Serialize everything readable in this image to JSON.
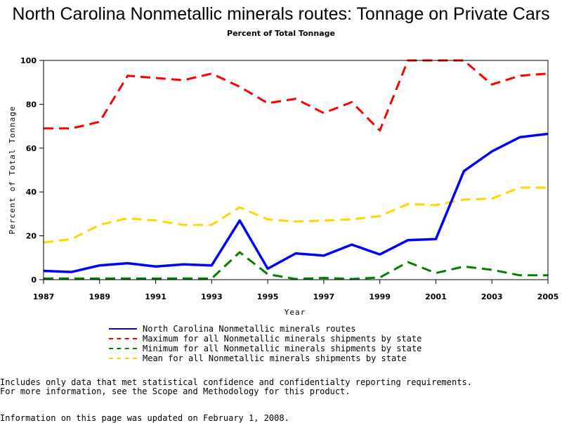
{
  "chart_data": {
    "type": "line",
    "title": "North Carolina Nonmetallic minerals routes: Tonnage on Private Cars",
    "subtitle": "Percent of Total Tonnage",
    "xlabel": "Year",
    "ylabel": "Percent of Total Tonnage",
    "x": [
      1987,
      1988,
      1989,
      1990,
      1991,
      1992,
      1993,
      1994,
      1995,
      1996,
      1997,
      1998,
      1999,
      2000,
      2001,
      2002,
      2003,
      2004,
      2005
    ],
    "xlim": [
      1987,
      2005
    ],
    "ylim": [
      0,
      100
    ],
    "xticks": [
      1987,
      1989,
      1991,
      1993,
      1995,
      1997,
      1999,
      2001,
      2003,
      2005
    ],
    "yticks": [
      0,
      20,
      40,
      60,
      80,
      100
    ],
    "grid": false,
    "legend_position": "bottom",
    "series": [
      {
        "name": "North Carolina Nonmetallic minerals routes",
        "color": "#0000ff",
        "style": "solid",
        "values": [
          4,
          3.5,
          6.5,
          7.5,
          6,
          7,
          6.5,
          27,
          5,
          12,
          11,
          16,
          11.5,
          18,
          18.5,
          49.5,
          58.5,
          65,
          66.5
        ]
      },
      {
        "name": "Maximum for all Nonmetallic minerals shipments by state",
        "color": "#ff0000",
        "style": "dashed",
        "values": [
          69,
          69,
          72,
          93,
          92,
          91,
          94,
          88,
          80.5,
          82.5,
          76,
          81,
          68,
          100,
          100,
          100,
          89,
          93,
          94
        ]
      },
      {
        "name": "Minimum for all Nonmetallic minerals shipments by state",
        "color": "#008000",
        "style": "dashed",
        "values": [
          0.5,
          0.5,
          0.5,
          0.5,
          0.5,
          0.5,
          0.5,
          12.5,
          2.5,
          0.3,
          0.8,
          0.3,
          1,
          8,
          3,
          6,
          4.5,
          2,
          2
        ]
      },
      {
        "name": "Mean for all Nonmetallic minerals shipments by state",
        "color": "#ffd700",
        "style": "dashed",
        "values": [
          17,
          18.5,
          25,
          28,
          27,
          25,
          25,
          33,
          27.5,
          26.5,
          27,
          27.5,
          29,
          34.5,
          34,
          36.5,
          37,
          42,
          42
        ]
      }
    ]
  },
  "footnotes": {
    "line1": "Includes only data that met statistical confidence and confidentialty reporting requirements.",
    "line2": "For more information, see the Scope and Methodology for this product.",
    "line3": "Information on this page was updated on February 1, 2008."
  }
}
